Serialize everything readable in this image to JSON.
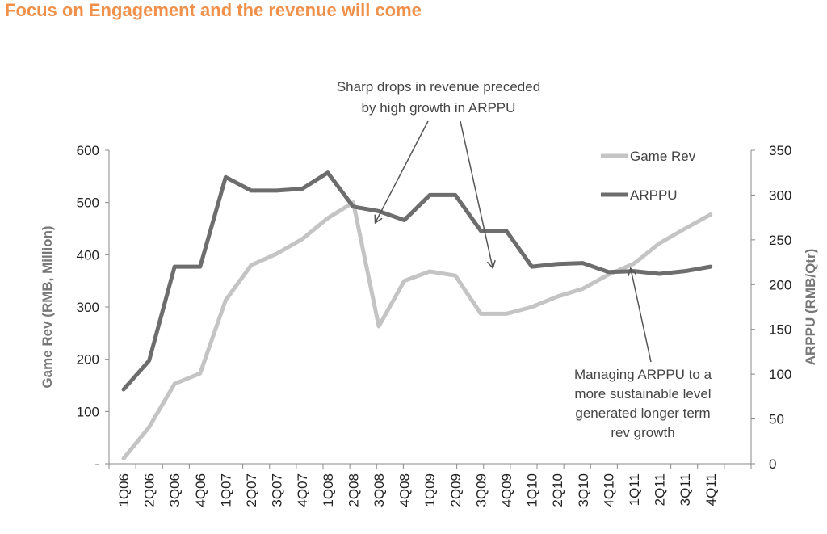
{
  "title": "Focus on Engagement and the revenue will come",
  "colors": {
    "title": "#f0904a",
    "game_rev": "#c4c4c4",
    "arppu": "#6d6d6d",
    "arrow": "#555555"
  },
  "chart_data": {
    "type": "line",
    "categories": [
      "1Q06",
      "2Q06",
      "3Q06",
      "4Q06",
      "1Q07",
      "2Q07",
      "3Q07",
      "4Q07",
      "1Q08",
      "2Q08",
      "3Q08",
      "4Q08",
      "1Q09",
      "2Q09",
      "3Q09",
      "4Q09",
      "1Q10",
      "2Q10",
      "3Q10",
      "4Q10",
      "1Q11",
      "2Q11",
      "3Q11",
      "4Q11"
    ],
    "series": [
      {
        "name": "Game Rev",
        "axis": "left",
        "values": [
          10,
          70,
          153,
          173,
          313,
          380,
          402,
          430,
          470,
          500,
          263,
          350,
          368,
          360,
          287,
          287,
          300,
          320,
          335,
          362,
          383,
          422,
          450,
          477
        ]
      },
      {
        "name": "ARPPU",
        "axis": "right",
        "values": [
          83,
          115,
          220,
          220,
          320,
          305,
          305,
          307,
          325,
          287,
          282,
          272,
          300,
          300,
          260,
          260,
          220,
          223,
          224,
          214,
          215,
          212,
          215,
          220
        ]
      }
    ],
    "left_axis": {
      "label": "Game Rev (RMB, Million)",
      "ylim": [
        0,
        600
      ],
      "tick_labels": [
        "-",
        "100",
        "200",
        "300",
        "400",
        "500",
        "600"
      ]
    },
    "right_axis": {
      "label": "ARPPU (RMB/Qtr)",
      "ylim": [
        0,
        350
      ],
      "tick_labels": [
        "0",
        "50",
        "100",
        "150",
        "200",
        "250",
        "300",
        "350"
      ]
    },
    "grid": false,
    "legend": "top-right",
    "annotations": [
      {
        "lines": [
          "Sharp drops in revenue preceded",
          "by high growth in ARPPU"
        ]
      },
      {
        "lines": [
          "Managing ARPPU to a",
          "more sustainable level",
          "generated longer term",
          "rev growth"
        ]
      }
    ]
  }
}
